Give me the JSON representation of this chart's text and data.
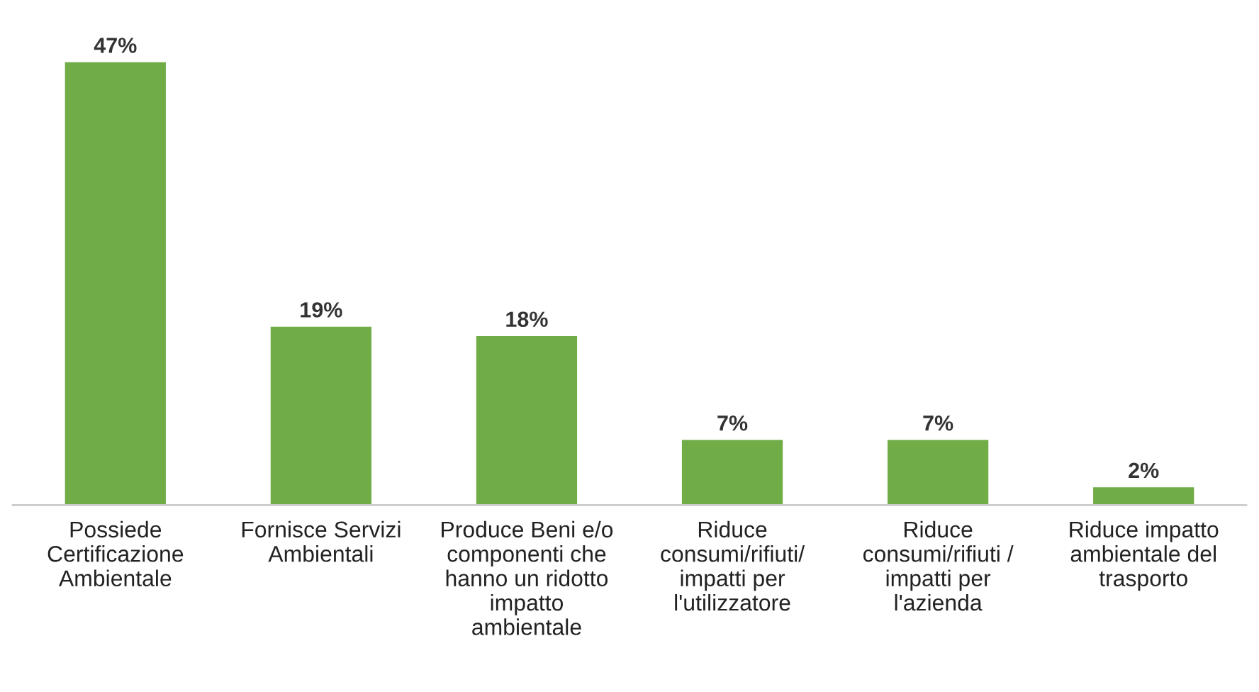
{
  "chart_data": {
    "type": "bar",
    "categories": [
      "Possiede\nCertificazione\nAmbientale",
      "Fornisce Servizi\nAmbientali",
      "Produce Beni e/o\ncomponenti che\nhanno un ridotto\nimpatto\nambientale",
      "Riduce\nconsumi/rifiuti/\nimpatti per\nl'utilizzatore",
      "Riduce\nconsumi/rifiuti /\nimpatti per\nl'azienda",
      "Riduce impatto\nambientale del\ntrasporto"
    ],
    "values": [
      47,
      19,
      18,
      7,
      7,
      2
    ],
    "value_labels": [
      "47%",
      "19%",
      "18%",
      "7%",
      "7%",
      "2%"
    ],
    "color": "#70ad47",
    "grid": false,
    "legend": false
  }
}
